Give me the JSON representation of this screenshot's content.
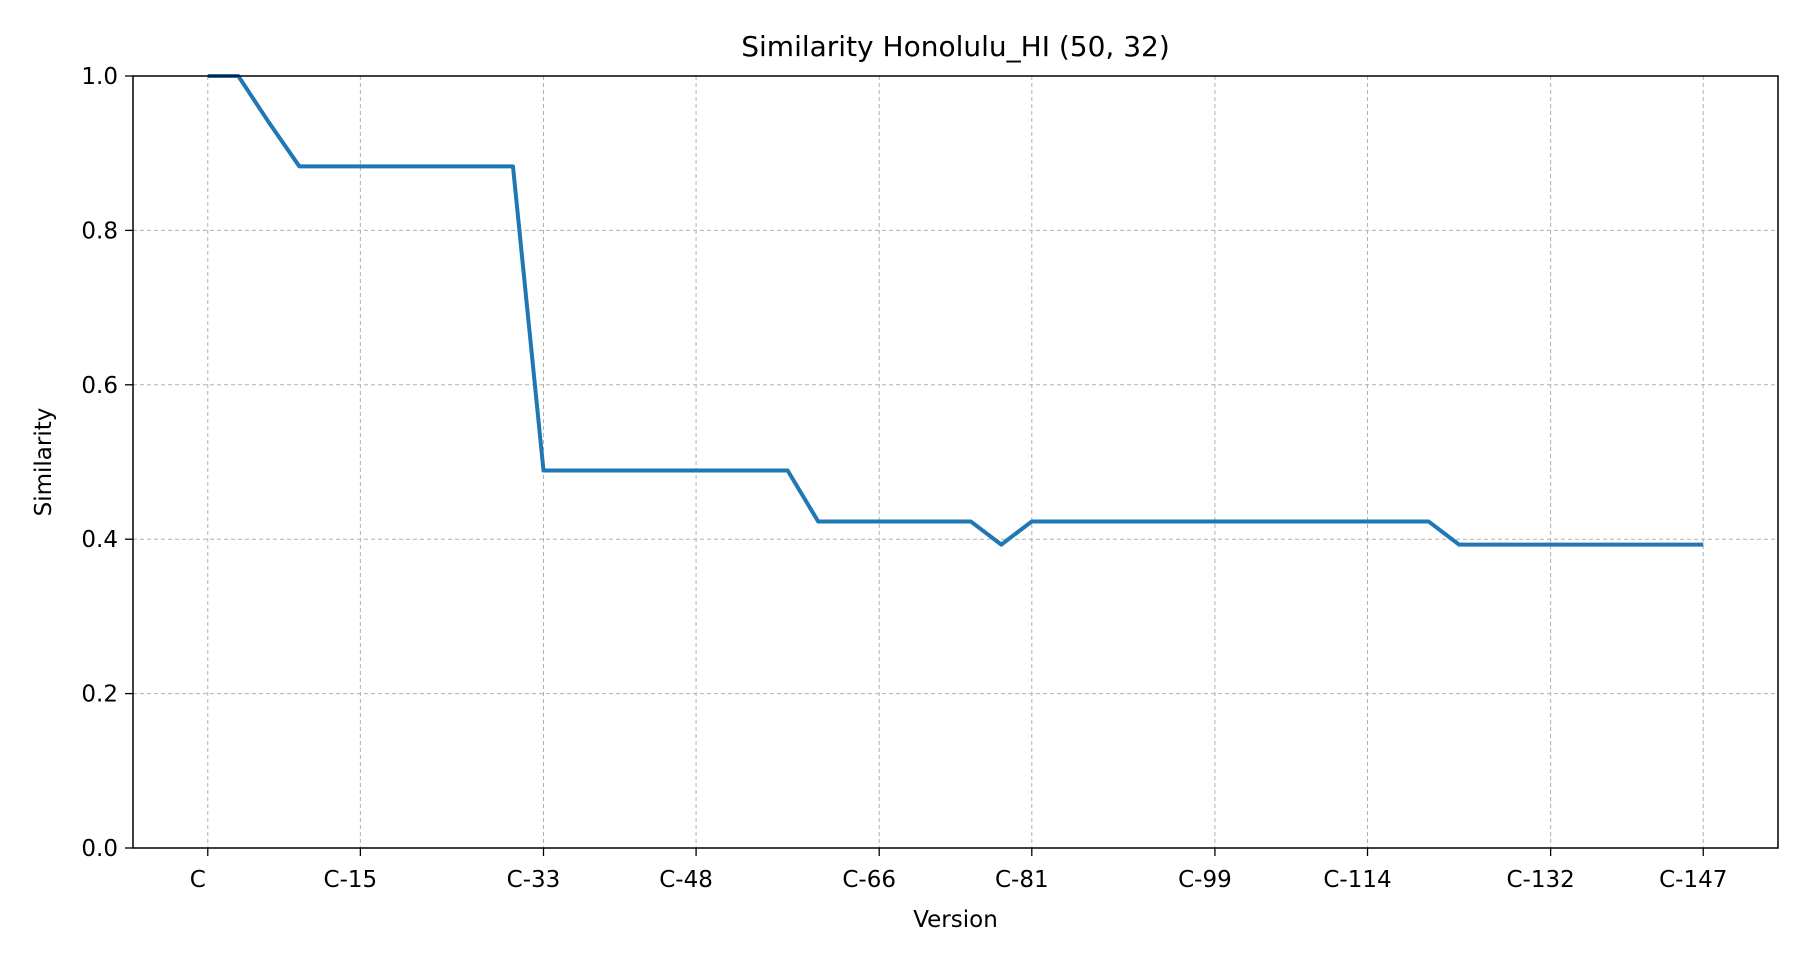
{
  "chart_data": {
    "type": "line",
    "title": "Similarity Honolulu_HI (50, 32)",
    "xlabel": "Version",
    "ylabel": "Similarity",
    "ylim": [
      0,
      1.0
    ],
    "yticks": [
      "0.0",
      "0.2",
      "0.4",
      "0.6",
      "0.8",
      "1.0"
    ],
    "xlim": [
      -2.45,
      51.45
    ],
    "xticks": [
      {
        "pos": 0,
        "label": "C"
      },
      {
        "pos": 5,
        "label": "C-15"
      },
      {
        "pos": 11,
        "label": "C-33"
      },
      {
        "pos": 16,
        "label": "C-48"
      },
      {
        "pos": 22,
        "label": "C-66"
      },
      {
        "pos": 27,
        "label": "C-81"
      },
      {
        "pos": 33,
        "label": "C-99"
      },
      {
        "pos": 38,
        "label": "C-114"
      },
      {
        "pos": 44,
        "label": "C-132"
      },
      {
        "pos": 49,
        "label": "C-147"
      }
    ],
    "grid": true,
    "color": "#1f77b4",
    "series": [
      {
        "name": "",
        "x": [
          0,
          1,
          2,
          3,
          4,
          5,
          6,
          7,
          8,
          9,
          10,
          11,
          12,
          13,
          14,
          15,
          16,
          17,
          18,
          19,
          20,
          21,
          22,
          23,
          24,
          25,
          26,
          27,
          28,
          29,
          30,
          31,
          32,
          33,
          34,
          35,
          36,
          37,
          38,
          39,
          40,
          41,
          42,
          43,
          44,
          45,
          46,
          47,
          48,
          49
        ],
        "values": [
          1.0,
          1.0,
          0.94,
          0.883,
          0.883,
          0.883,
          0.883,
          0.883,
          0.883,
          0.883,
          0.883,
          0.489,
          0.489,
          0.489,
          0.489,
          0.489,
          0.489,
          0.489,
          0.489,
          0.489,
          0.423,
          0.423,
          0.423,
          0.423,
          0.423,
          0.423,
          0.393,
          0.423,
          0.423,
          0.423,
          0.423,
          0.423,
          0.423,
          0.423,
          0.423,
          0.423,
          0.423,
          0.423,
          0.423,
          0.423,
          0.423,
          0.393,
          0.393,
          0.393,
          0.393,
          0.393,
          0.393,
          0.393,
          0.393,
          0.393
        ]
      }
    ]
  }
}
